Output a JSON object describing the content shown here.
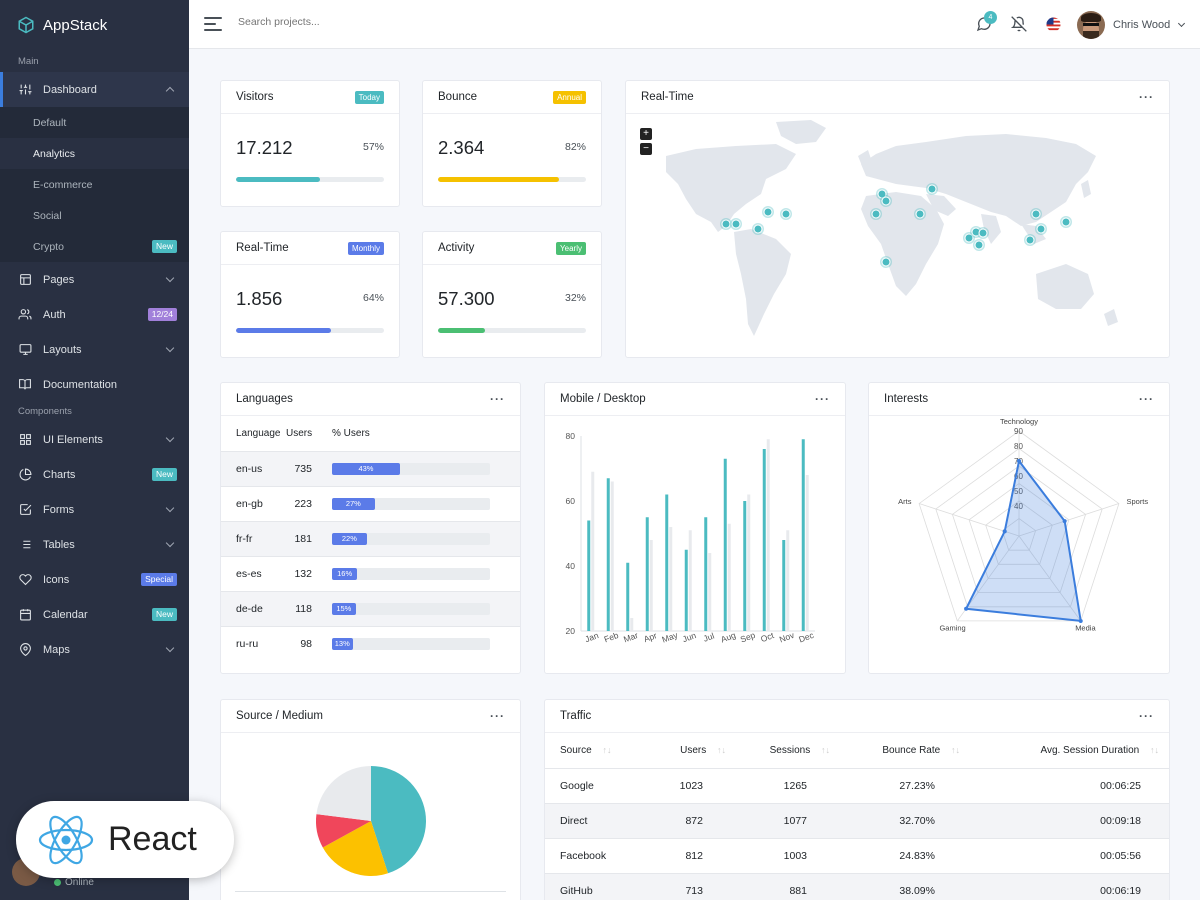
{
  "brand": "AppStack",
  "sidebar": {
    "sections": [
      "Main",
      "Components"
    ],
    "dashboard": {
      "label": "Dashboard",
      "sub": [
        "Default",
        "Analytics",
        "E-commerce",
        "Social",
        "Crypto"
      ],
      "crypto_badge": "New"
    },
    "items": [
      {
        "label": "Pages",
        "icon": "layout-icon"
      },
      {
        "label": "Auth",
        "icon": "users-icon",
        "badge": "12/24"
      },
      {
        "label": "Layouts",
        "icon": "monitor-icon"
      },
      {
        "label": "Documentation",
        "icon": "book-icon"
      }
    ],
    "components": [
      {
        "label": "UI Elements",
        "icon": "grid-icon"
      },
      {
        "label": "Charts",
        "icon": "pie-icon",
        "badge": "New"
      },
      {
        "label": "Forms",
        "icon": "check-square-icon"
      },
      {
        "label": "Tables",
        "icon": "list-icon"
      },
      {
        "label": "Icons",
        "icon": "heart-icon",
        "badge": "Special"
      },
      {
        "label": "Calendar",
        "icon": "calendar-icon",
        "badge": "New"
      },
      {
        "label": "Maps",
        "icon": "map-pin-icon"
      }
    ],
    "status": "Online"
  },
  "topbar": {
    "search_placeholder": "Search projects...",
    "notifications": "4",
    "user": "Chris Wood"
  },
  "stats": [
    {
      "title": "Visitors",
      "badge": "Today",
      "value": "17.212",
      "pct": "57%",
      "progress": 57,
      "color": "#4bbbc1"
    },
    {
      "title": "Bounce",
      "badge": "Annual",
      "value": "2.364",
      "pct": "82%",
      "progress": 82,
      "color": "#f5c100"
    },
    {
      "title": "Real-Time",
      "badge": "Monthly",
      "value": "1.856",
      "pct": "64%",
      "progress": 64,
      "color": "#5b7be8"
    },
    {
      "title": "Activity",
      "badge": "Yearly",
      "value": "57.300",
      "pct": "32%",
      "progress": 32,
      "color": "#4bbf73"
    }
  ],
  "realtime_title": "Real-Time",
  "languages": {
    "title": "Languages",
    "headers": [
      "Language",
      "Users",
      "% Users"
    ],
    "rows": [
      {
        "lang": "en-us",
        "users": "735",
        "pct": 43,
        "label": "43%"
      },
      {
        "lang": "en-gb",
        "users": "223",
        "pct": 27,
        "label": "27%"
      },
      {
        "lang": "fr-fr",
        "users": "181",
        "pct": 22,
        "label": "22%"
      },
      {
        "lang": "es-es",
        "users": "132",
        "pct": 16,
        "label": "16%"
      },
      {
        "lang": "de-de",
        "users": "118",
        "pct": 15,
        "label": "15%"
      },
      {
        "lang": "ru-ru",
        "users": "98",
        "pct": 13,
        "label": "13%"
      }
    ]
  },
  "mobile_title": "Mobile / Desktop",
  "interests_title": "Interests",
  "source_title": "Source / Medium",
  "traffic": {
    "title": "Traffic",
    "headers": [
      "Source",
      "Users",
      "Sessions",
      "Bounce Rate",
      "Avg. Session Duration"
    ],
    "rows": [
      [
        "Google",
        "1023",
        "1265",
        "27.23%",
        "00:06:25"
      ],
      [
        "Direct",
        "872",
        "1077",
        "32.70%",
        "00:09:18"
      ],
      [
        "Facebook",
        "812",
        "1003",
        "24.83%",
        "00:05:56"
      ],
      [
        "GitHub",
        "713",
        "881",
        "38.09%",
        "00:06:19"
      ]
    ]
  },
  "react_label": "React",
  "chart_data": [
    {
      "type": "bar",
      "categories": [
        "Jan",
        "Feb",
        "Mar",
        "Apr",
        "May",
        "Jun",
        "Jul",
        "Aug",
        "Sep",
        "Oct",
        "Nov",
        "Dec"
      ],
      "series": [
        {
          "values": [
            54,
            67,
            41,
            55,
            62,
            45,
            55,
            73,
            60,
            76,
            48,
            79
          ],
          "color": "#4bbbc1"
        },
        {
          "values": [
            69,
            66,
            24,
            48,
            52,
            51,
            44,
            53,
            62,
            79,
            51,
            68
          ],
          "color": "#e8eaed"
        }
      ],
      "ylim": [
        20,
        80
      ],
      "yticks": [
        20,
        40,
        60,
        80
      ]
    },
    {
      "type": "radar",
      "axes": [
        "Technology",
        "Sports",
        "Media",
        "Gaming",
        "Arts"
      ],
      "values": [
        70,
        52,
        90,
        80,
        30
      ],
      "rmin": 20,
      "rmax": 90,
      "rticks": [
        40,
        50,
        60,
        70,
        80,
        90
      ]
    },
    {
      "type": "pie",
      "values": [
        45,
        22,
        10,
        23
      ],
      "colors": [
        "#4bbbc1",
        "#fcc100",
        "#f0465b",
        "#e8eaed"
      ]
    }
  ]
}
